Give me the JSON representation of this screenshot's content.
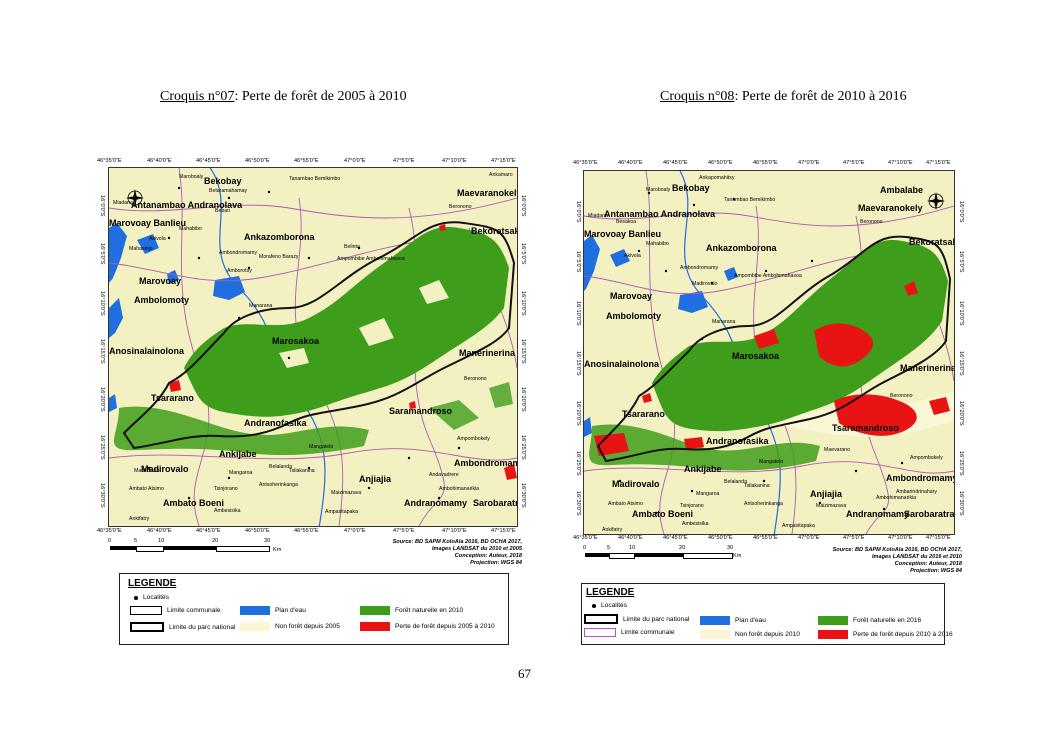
{
  "captions": [
    {
      "label": "Croquis n°07",
      "rest": ": Perte de forêt de 2005 à 2010"
    },
    {
      "label": "Croquis n°08",
      "rest": ": Perte de forêt de 2010 à 2016"
    }
  ],
  "page_number": "67",
  "axes": {
    "top_ticks": [
      "46°35'0\"E",
      "46°40'0\"E",
      "46°45'0\"E",
      "46°50'0\"E",
      "46°55'0\"E",
      "47°0'0\"E",
      "47°5'0\"E",
      "47°10'0\"E",
      "47°15'0\"E"
    ],
    "side_ticks": [
      "16°0'0\"S",
      "16°5'0\"S",
      "16°10'0\"S",
      "16°15'0\"S",
      "16°20'0\"S",
      "16°25'0\"S",
      "16°30'0\"S"
    ]
  },
  "scale": {
    "labels": [
      "0",
      "5",
      "10",
      "20",
      "30"
    ],
    "unit": "Km"
  },
  "map1": {
    "source": [
      "Source: BD SAPM KoloAla 2016, BD OCHA 2017,",
      "Images LANDSAT du 2010 et 2005",
      "Conception: Auteur, 2018",
      "Projection: WGS 84"
    ],
    "big_places": [
      "Bekobay",
      "Maevaranokely",
      "Antanambao Andranolava",
      "Marovoay Banlieu",
      "Ankazomborona",
      "Bekoratsaka",
      "Marovoay",
      "Ambolomoty",
      "Marosakoa",
      "Anosinalainolona",
      "Manerinerina",
      "Tsararano",
      "Saramandroso",
      "Andranofasika",
      "Ankijabe",
      "Madirovalo",
      "Ambondromamy",
      "Anjiajia",
      "Ambato Boeni",
      "Andranomamy",
      "Sarobaratra"
    ],
    "small_places": [
      "Maroboaly",
      "Betaramahamay",
      "Tanambao Bemikimbo",
      "Ankamaro",
      "Miadana",
      "Bebao",
      "Beronono",
      "Mahabibo",
      "Akivola",
      "Ambondromamy",
      "Morafeno Barazy",
      "Belinta",
      "Ampombibe Ambohimahasoa",
      "Mahasinjo",
      "Manarana",
      "Amborotsy",
      "Madirovalo",
      "Ambato Atsimo",
      "Tsinjorano",
      "Antsoherinkanga",
      "Maizimazava",
      "Ambohimanarikia",
      "Ampasitapaka",
      "Ankifatry",
      "Ambesisika",
      "Mangaroa",
      "Tsilakanina",
      "Belalanda",
      "Mangatelo",
      "Andavadrere",
      "Beronono",
      "Ampombokely"
    ],
    "legend": {
      "title": "LEGENDE",
      "items": [
        "Localités",
        "Limite communale",
        "Limite du parc national",
        "Plan d'eau",
        "Non forêt depuis 2005",
        "Forêt naturelle en 2010",
        "Perte de forêt depuis 2005 à 2010"
      ]
    }
  },
  "map2": {
    "source": [
      "Source: BD SAPM KoloAla 2016, BD OCHA 2017,",
      "Images LANDSAT du 2016 et 2010",
      "Conception: Auteur, 2018",
      "Projection: WGS 84"
    ],
    "big_places": [
      "Bekobay",
      "Ambalabe",
      "Maevaranokely",
      "Antanambao Andranolava",
      "Marovoay Banlieu",
      "Ankazomborona",
      "Bekoratsaka",
      "Marovoay",
      "Ambolomoty",
      "Marosakoa",
      "Anosinalainolona",
      "Manerinerina",
      "Tsararano",
      "Tsaramandroso",
      "Andranofasika",
      "Ankijabe",
      "Madirovalo",
      "Ambondromamy",
      "Anjiajia",
      "Ambato Boeni",
      "Andranomamy",
      "Sarobaratra"
    ],
    "small_places": [
      "Ankapomahitsy",
      "Maroboaly",
      "Tanambao Bemikimbo",
      "Beronono",
      "Miadana",
      "Besakoa",
      "Akivola",
      "Mahabibo",
      "Ambondromamy",
      "Ampombibe Ambohimahasoa",
      "Madirovalo",
      "Manarana",
      "Beronono",
      "Belalanda",
      "Mangatelo",
      "Tsilakanina",
      "Mangaroa",
      "Antsoherinkanga",
      "Tsinjorano",
      "Ambato Atsimo",
      "Ambohimanarikia",
      "Ambarindrinahary",
      "Maizimazava",
      "Ampasitapaka",
      "Ambesisika",
      "Ankifatry",
      "Ampombokely",
      "Maevarano"
    ],
    "legend": {
      "title": "LEGENDE",
      "items": [
        "Localités",
        "Limite du parc national",
        "Limite communale",
        "Plan d'eau",
        "Non forêt depuis 2010",
        "Forêt naturelle en 2016",
        "Perte de forêt depuis 2010 à 2016"
      ]
    }
  },
  "colors": {
    "forest": "#3e9d1a",
    "loss": "#e81414",
    "nonforest": "#f3f0c2",
    "nonforest2": "#fbf6d6",
    "water": "#1f6fe0",
    "commune": "#b05ab3",
    "park": "#111111"
  }
}
